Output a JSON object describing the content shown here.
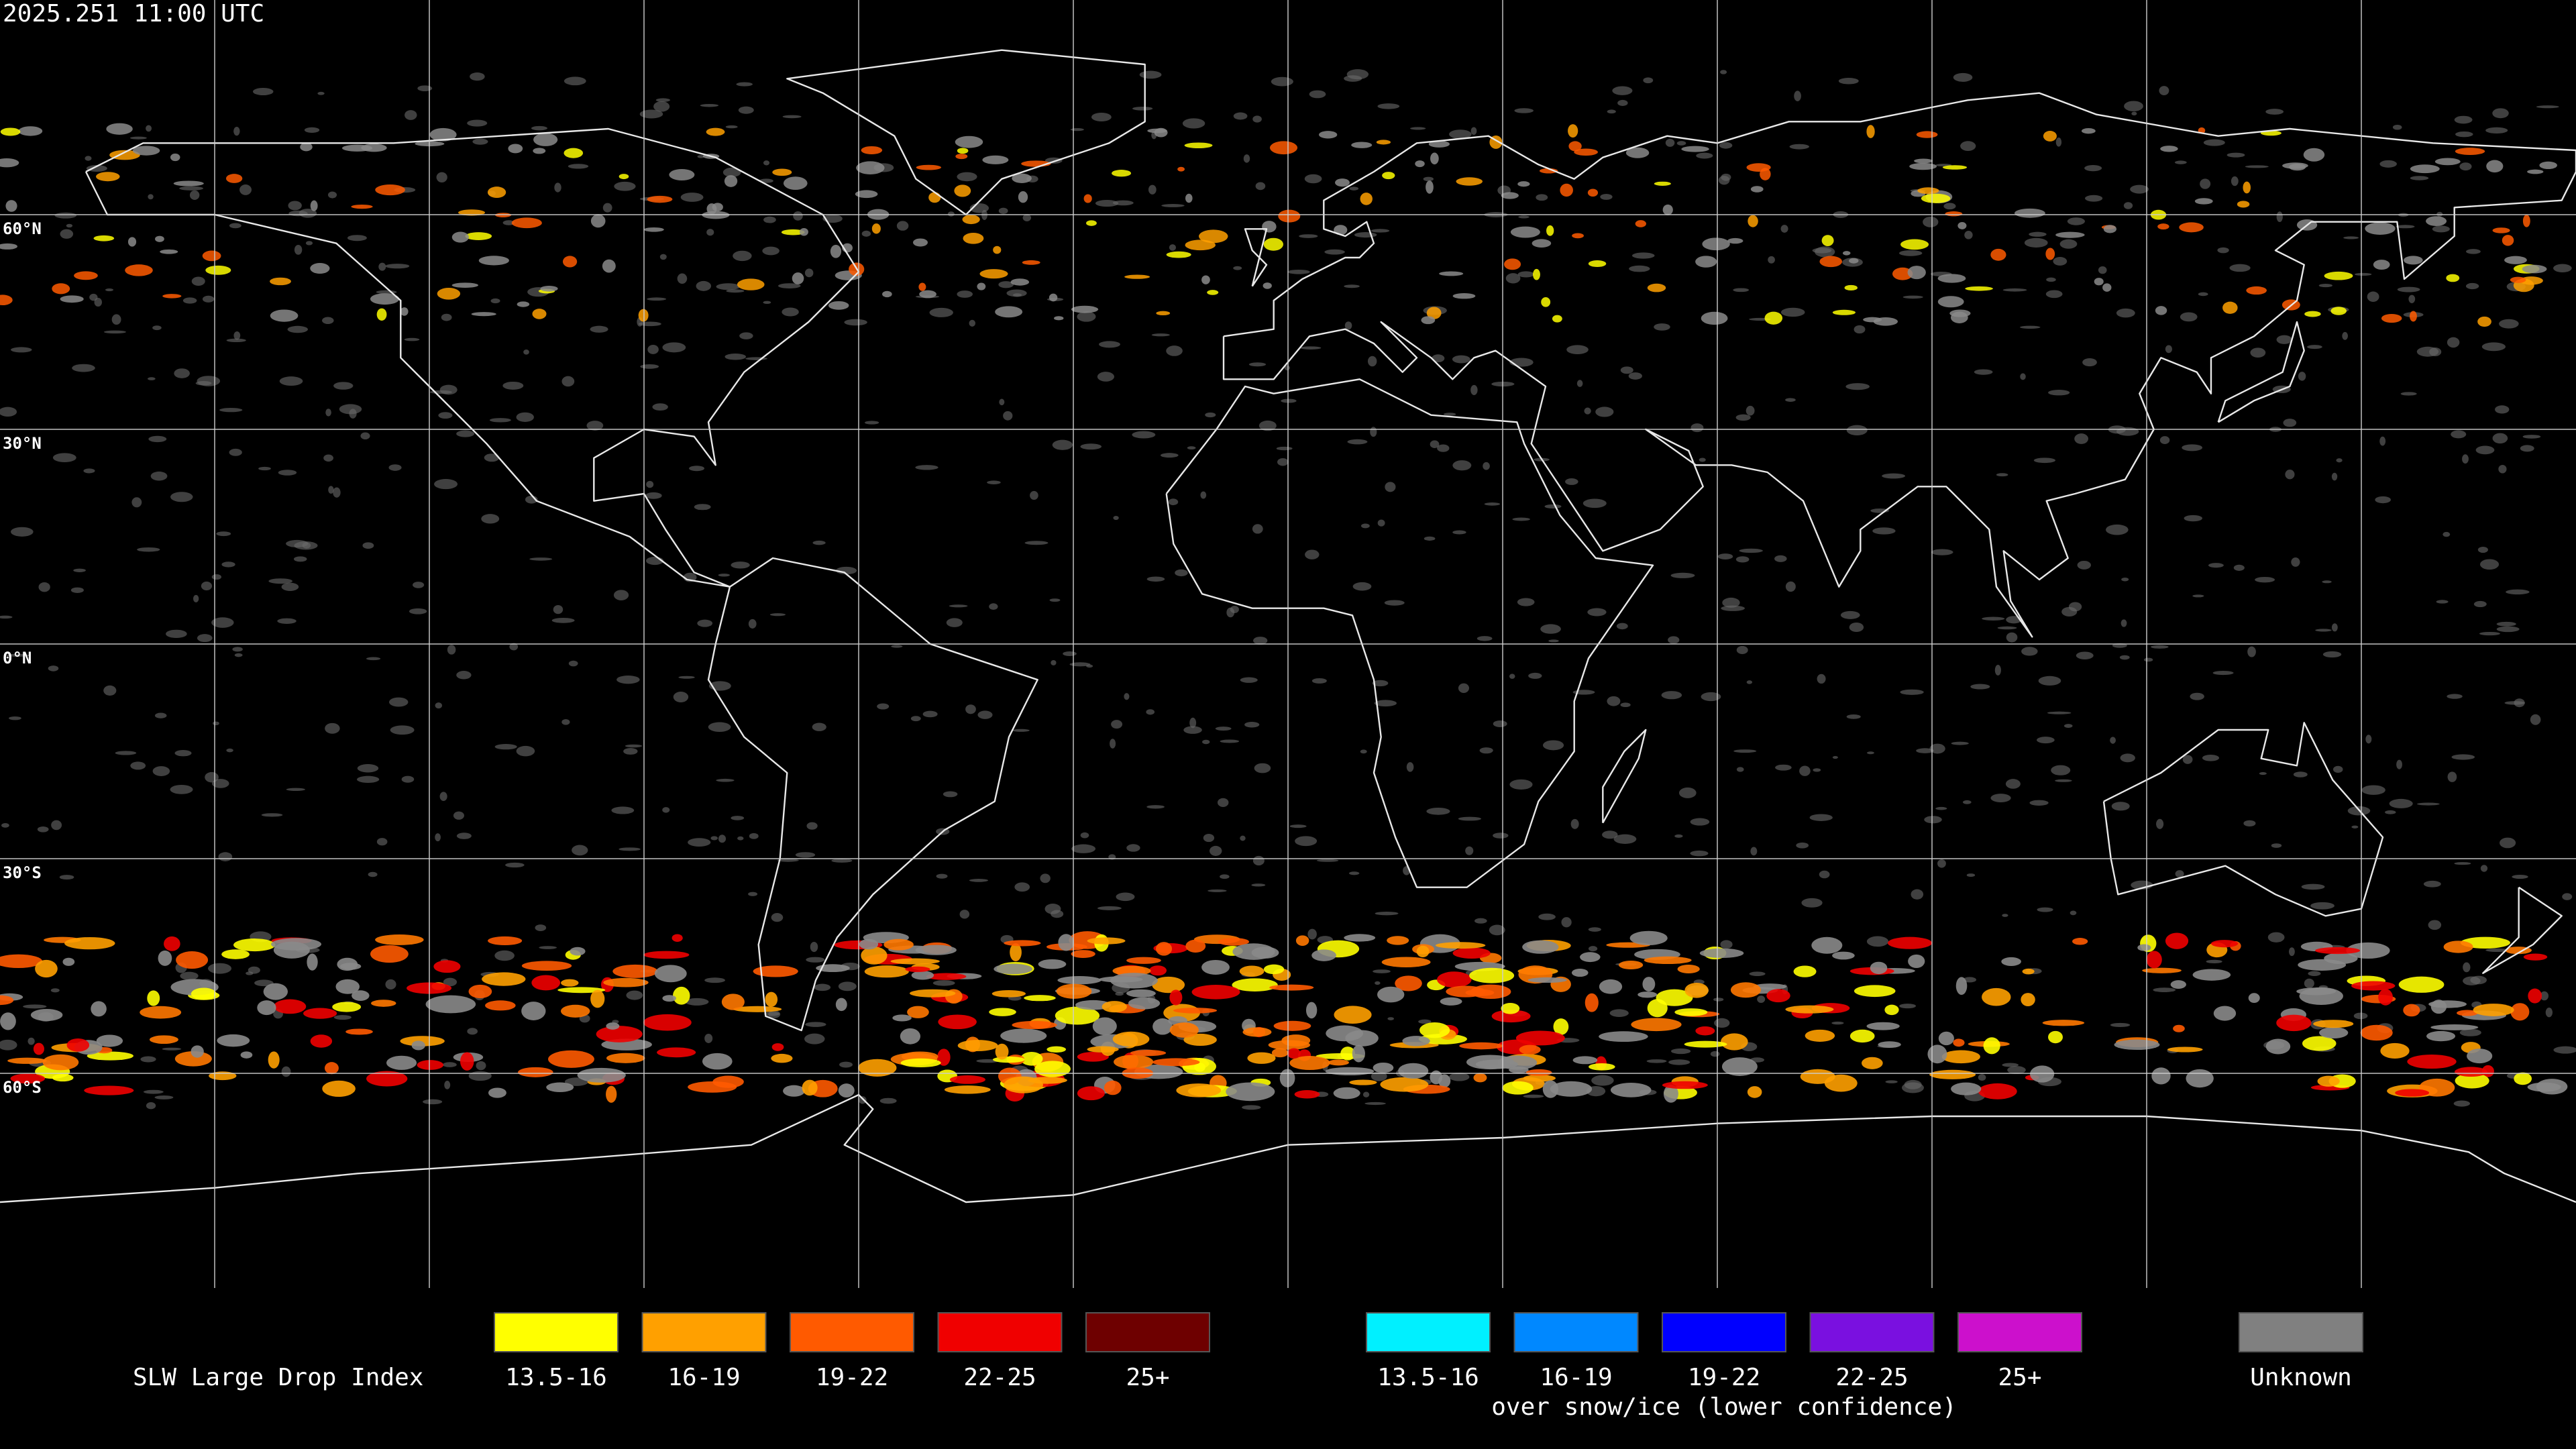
{
  "timestamp": "2025.251 11:00 UTC",
  "latitude_labels": [
    "60°N",
    "30°N",
    "0°N",
    "30°S",
    "60°S"
  ],
  "legend": {
    "title": "SLW Large Drop Index",
    "groups": [
      {
        "items": [
          {
            "label": "13.5-16",
            "color": "#ffff00"
          },
          {
            "label": "16-19",
            "color": "#ffa000"
          },
          {
            "label": "19-22",
            "color": "#ff5a00"
          },
          {
            "label": "22-25",
            "color": "#f00000"
          },
          {
            "label": "25+",
            "color": "#6e0000"
          }
        ]
      },
      {
        "items": [
          {
            "label": "13.5-16",
            "color": "#00f0ff"
          },
          {
            "label": "16-19",
            "color": "#0088ff"
          },
          {
            "label": "19-22",
            "color": "#0000ff"
          },
          {
            "label": "22-25",
            "color": "#7a10e0"
          },
          {
            "label": "25+",
            "color": "#cc10cc"
          }
        ],
        "note": "over snow/ice (lower confidence)"
      }
    ],
    "unknown": {
      "label": "Unknown",
      "color": "#808080"
    }
  }
}
